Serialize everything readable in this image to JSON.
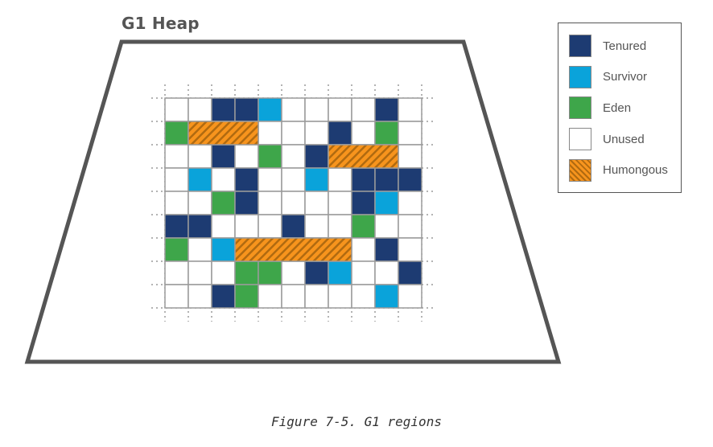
{
  "title": "G1 Heap",
  "caption": "Figure 7-5. G1 regions",
  "colors": {
    "tenured": "#1d3b72",
    "survivor": "#0aa3da",
    "eden": "#3ea64a",
    "unused": "#ffffff",
    "humongous_base": "#f7941d",
    "humongous_stripe": "#b06a10",
    "grid": "#9a9a9a",
    "heap_border": "#555555"
  },
  "legend": [
    {
      "key": "tenured",
      "label": "Tenured"
    },
    {
      "key": "survivor",
      "label": "Survivor"
    },
    {
      "key": "eden",
      "label": "Eden"
    },
    {
      "key": "unused",
      "label": "Unused"
    },
    {
      "key": "humongous",
      "label": "Humongous"
    }
  ],
  "grid": {
    "rows": 9,
    "cols": 11,
    "cells": [
      [
        "U",
        "U",
        "T",
        "T",
        "S",
        "U",
        "U",
        "U",
        "U",
        "T",
        "U"
      ],
      [
        "E",
        "U",
        "U",
        "U",
        "U",
        "U",
        "U",
        "T",
        "U",
        "E",
        "U"
      ],
      [
        "U",
        "U",
        "T",
        "U",
        "E",
        "U",
        "T",
        "U",
        "U",
        "U",
        "U"
      ],
      [
        "U",
        "S",
        "U",
        "T",
        "U",
        "U",
        "S",
        "U",
        "T",
        "T",
        "T"
      ],
      [
        "U",
        "U",
        "E",
        "T",
        "U",
        "U",
        "U",
        "U",
        "T",
        "S",
        "U"
      ],
      [
        "T",
        "T",
        "U",
        "U",
        "U",
        "T",
        "U",
        "U",
        "E",
        "U",
        "U"
      ],
      [
        "E",
        "U",
        "S",
        "U",
        "U",
        "U",
        "U",
        "U",
        "U",
        "T",
        "U"
      ],
      [
        "U",
        "U",
        "U",
        "E",
        "E",
        "U",
        "T",
        "S",
        "U",
        "U",
        "T"
      ],
      [
        "U",
        "U",
        "T",
        "E",
        "U",
        "U",
        "U",
        "U",
        "U",
        "S",
        "U"
      ]
    ],
    "humongous": [
      {
        "row": 1,
        "col": 1,
        "span": 3
      },
      {
        "row": 2,
        "col": 7,
        "span": 3
      },
      {
        "row": 6,
        "col": 3,
        "span": 5
      }
    ]
  }
}
